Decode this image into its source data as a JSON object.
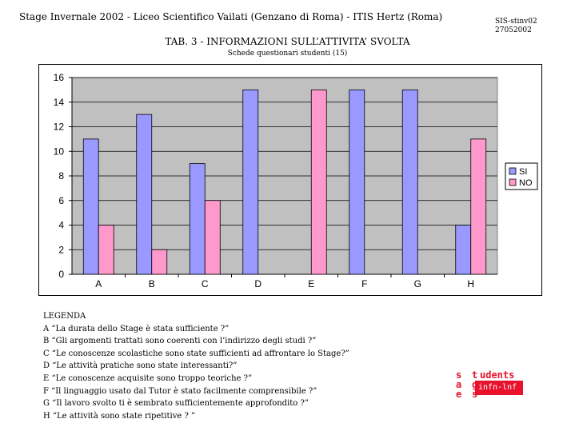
{
  "header": {
    "left": "Stage Invernale  2002 - Liceo Scientifico Vailati   (Genzano di Roma) - ITIS Hertz (Roma)",
    "code_line1": "SIS-stinv02",
    "code_line2": "27052002"
  },
  "title": "TAB. 3 - INFORMAZIONI SULL’ATTIVITA’ SVOLTA",
  "subtitle": "Schede questionari studenti  (15)",
  "chart_data": {
    "type": "bar",
    "categories": [
      "A",
      "B",
      "C",
      "D",
      "E",
      "F",
      "G",
      "H"
    ],
    "series": [
      {
        "name": "SI",
        "color": "#9999ff",
        "values": [
          11,
          13,
          9,
          15,
          0,
          15,
          15,
          4
        ]
      },
      {
        "name": "NO",
        "color": "#ff99cc",
        "values": [
          4,
          2,
          6,
          0,
          15,
          0,
          0,
          11
        ]
      }
    ],
    "ylim": [
      0,
      16
    ],
    "yticks": [
      0,
      2,
      4,
      6,
      8,
      10,
      12,
      14,
      16
    ],
    "grid": true,
    "legend": "right",
    "plot_background": "#c0c0c0"
  },
  "legend_items": [
    "LEGENDA",
    "A  “La durata dello  Stage è stata sufficiente ?”",
    "B  “Gli argomenti trattati sono coerenti   con l’indirizzo degli studi ?”",
    "C  “Le conoscenze scolastiche sono  state  sufficienti ad affrontare lo  Stage?”",
    "D  “Le attività pratiche sono   state  interessanti?”",
    "E  “Le conoscenze acquisite sono troppo teoriche  ?”",
    "F  “Il linguaggio usato dal  Tutor è stato facilmente comprensibile  ?”",
    "G  “Il lavoro svolto ti   è sembrato sufficientemente approfondito  ?”",
    "H  “Le attività sono  state ripetitive  ? ”"
  ],
  "logo": {
    "s1": "s",
    "t1": "t",
    "udents": "udents",
    "a": "a",
    "g": "g",
    "e": "e",
    "s2": "s",
    "infn": "infn-lnf",
    "color": "#e8122c"
  }
}
